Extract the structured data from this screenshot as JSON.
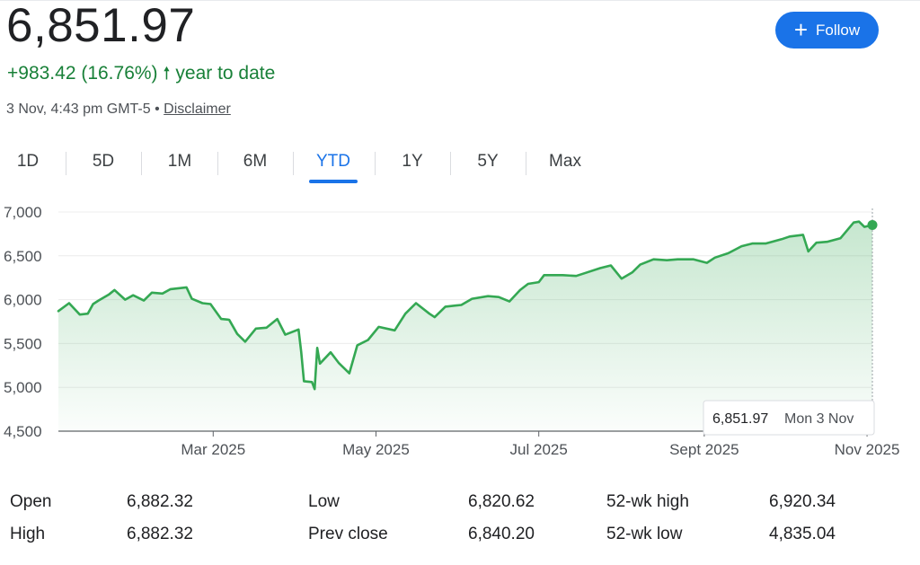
{
  "quote": {
    "price": "6,851.97",
    "change": "+983.42 (16.76%)",
    "change_arrow": "🠕",
    "period_label": "year to date",
    "timestamp": "3 Nov, 4:43 pm GMT-5 •",
    "disclaimer": "Disclaimer",
    "accent_color": "#188038"
  },
  "follow_button": {
    "icon": "plus-icon",
    "label": "Follow",
    "color": "#1a73e8"
  },
  "tabs": [
    {
      "label": "1D",
      "active": false
    },
    {
      "label": "5D",
      "active": false
    },
    {
      "label": "1M",
      "active": false
    },
    {
      "label": "6M",
      "active": false
    },
    {
      "label": "YTD",
      "active": true
    },
    {
      "label": "1Y",
      "active": false
    },
    {
      "label": "5Y",
      "active": false
    },
    {
      "label": "Max",
      "active": false
    }
  ],
  "chart_data": {
    "type": "area",
    "title": "",
    "xlabel": "",
    "ylabel": "",
    "ylim": [
      4500,
      7000
    ],
    "y_ticks": [
      {
        "value": 7000,
        "label": "7,000"
      },
      {
        "value": 6500,
        "label": "6,500"
      },
      {
        "value": 6000,
        "label": "6,000"
      },
      {
        "value": 5500,
        "label": "5,500"
      },
      {
        "value": 5000,
        "label": "5,000"
      },
      {
        "value": 4500,
        "label": "4,500"
      }
    ],
    "x_range": [
      "2025-01-02",
      "2025-11-03"
    ],
    "x_ticks": [
      {
        "date": "2025-03-01",
        "label": "Mar 2025"
      },
      {
        "date": "2025-05-01",
        "label": "May 2025"
      },
      {
        "date": "2025-07-01",
        "label": "Jul 2025"
      },
      {
        "date": "2025-09-01",
        "label": "Sept 2025"
      },
      {
        "date": "2025-11-01",
        "label": "Nov 2025"
      }
    ],
    "grid": true,
    "line_color": "#34a853",
    "series": [
      {
        "x": [
          "2025-01-02",
          "2025-01-06",
          "2025-01-10",
          "2025-01-13",
          "2025-01-15",
          "2025-01-17",
          "2025-01-21",
          "2025-01-23",
          "2025-01-27",
          "2025-01-30",
          "2025-02-03",
          "2025-02-06",
          "2025-02-10",
          "2025-02-13",
          "2025-02-19",
          "2025-02-21",
          "2025-02-25",
          "2025-02-28",
          "2025-03-04",
          "2025-03-07",
          "2025-03-10",
          "2025-03-13",
          "2025-03-17",
          "2025-03-21",
          "2025-03-25",
          "2025-03-28",
          "2025-04-02",
          "2025-04-03",
          "2025-04-04",
          "2025-04-07",
          "2025-04-08",
          "2025-04-09",
          "2025-04-10",
          "2025-04-14",
          "2025-04-17",
          "2025-04-21",
          "2025-04-24",
          "2025-04-28",
          "2025-05-02",
          "2025-05-08",
          "2025-05-12",
          "2025-05-16",
          "2025-05-21",
          "2025-05-23",
          "2025-05-27",
          "2025-06-02",
          "2025-06-06",
          "2025-06-12",
          "2025-06-16",
          "2025-06-20",
          "2025-06-24",
          "2025-06-27",
          "2025-07-01",
          "2025-07-03",
          "2025-07-10",
          "2025-07-15",
          "2025-07-18",
          "2025-07-24",
          "2025-07-28",
          "2025-08-01",
          "2025-08-05",
          "2025-08-08",
          "2025-08-13",
          "2025-08-18",
          "2025-08-22",
          "2025-08-28",
          "2025-09-02",
          "2025-09-05",
          "2025-09-10",
          "2025-09-15",
          "2025-09-19",
          "2025-09-24",
          "2025-09-30",
          "2025-10-03",
          "2025-10-08",
          "2025-10-10",
          "2025-10-13",
          "2025-10-17",
          "2025-10-22",
          "2025-10-27",
          "2025-10-29",
          "2025-10-31",
          "2025-11-03"
        ],
        "values": [
          5870,
          5960,
          5830,
          5840,
          5950,
          5990,
          6060,
          6110,
          6000,
          6050,
          5990,
          6080,
          6070,
          6120,
          6140,
          6010,
          5960,
          5950,
          5780,
          5770,
          5610,
          5520,
          5670,
          5680,
          5780,
          5600,
          5660,
          5400,
          5070,
          5060,
          4980,
          5450,
          5270,
          5400,
          5280,
          5160,
          5480,
          5540,
          5690,
          5650,
          5840,
          5960,
          5840,
          5800,
          5920,
          5940,
          6010,
          6040,
          6030,
          5980,
          6110,
          6180,
          6200,
          6280,
          6280,
          6270,
          6300,
          6360,
          6390,
          6240,
          6310,
          6400,
          6460,
          6450,
          6460,
          6460,
          6420,
          6480,
          6530,
          6610,
          6640,
          6640,
          6690,
          6720,
          6740,
          6550,
          6650,
          6660,
          6700,
          6880,
          6890,
          6830,
          6851.97
        ]
      }
    ],
    "tooltip": {
      "value": "6,851.97",
      "date": "Mon 3 Nov"
    }
  },
  "stats": [
    {
      "label": "Open",
      "value": "6,882.32"
    },
    {
      "label": "High",
      "value": "6,882.32"
    },
    {
      "label": "Low",
      "value": "6,820.62"
    },
    {
      "label": "Prev close",
      "value": "6,840.20"
    },
    {
      "label": "52-wk high",
      "value": "6,920.34"
    },
    {
      "label": "52-wk low",
      "value": "4,835.04"
    }
  ]
}
